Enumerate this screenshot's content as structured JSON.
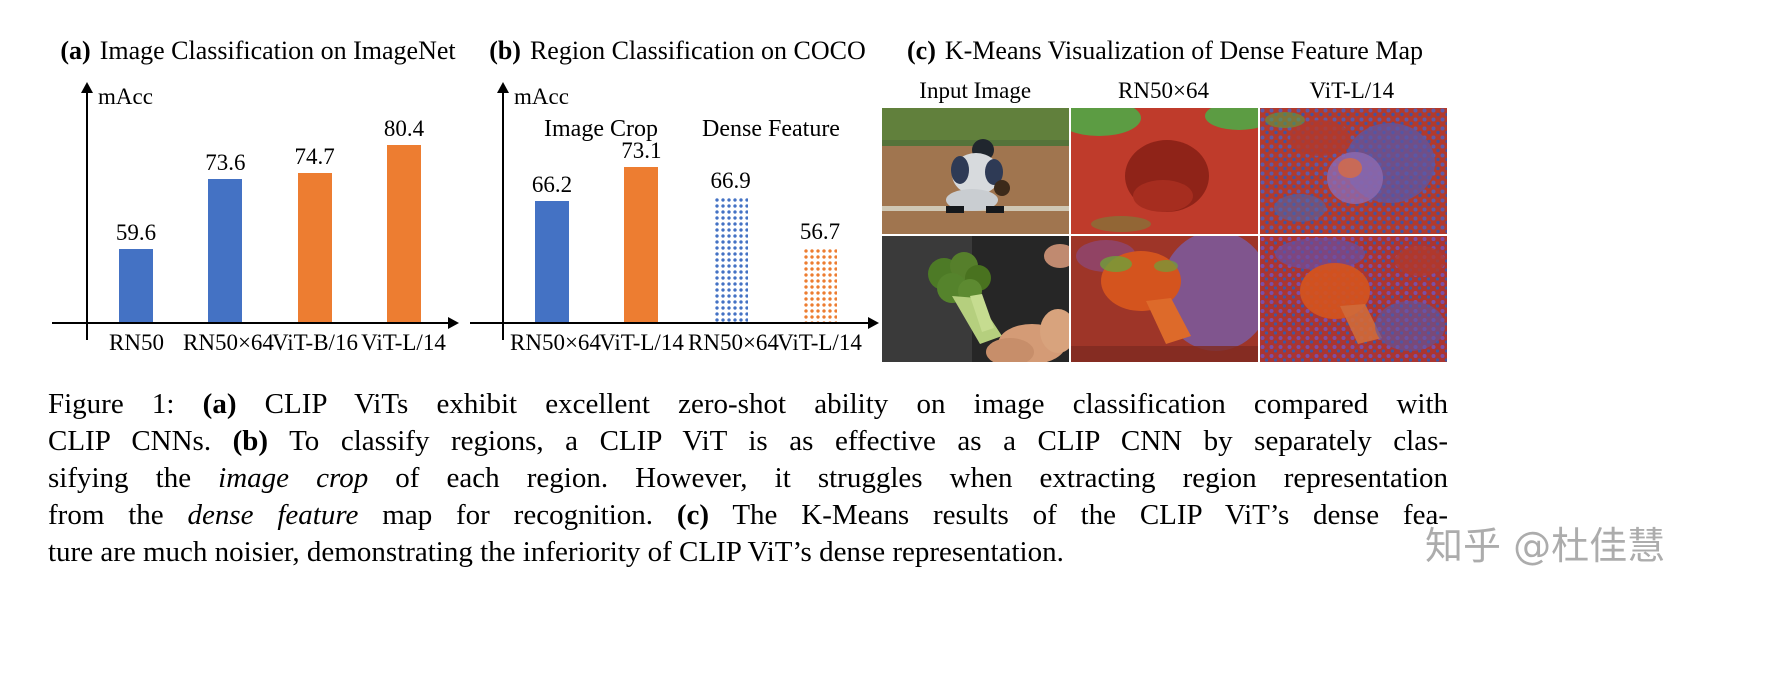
{
  "chart_data": [
    {
      "type": "bar",
      "label": "(a)",
      "title": "Image Classification on ImageNet",
      "ylabel": "mAcc",
      "categories": [
        "RN50",
        "RN50×64",
        "ViT-B/16",
        "ViT-L/14"
      ],
      "values": [
        59.6,
        73.6,
        74.7,
        80.4
      ],
      "colors": [
        "#4472C4",
        "#4472C4",
        "#ED7D31",
        "#ED7D31"
      ],
      "patterns": [
        "solid",
        "solid",
        "solid",
        "solid"
      ],
      "ylim": [
        45,
        85
      ],
      "grid": false,
      "legend": "none"
    },
    {
      "type": "bar",
      "label": "(b)",
      "title": "Region Classification on COCO",
      "ylabel": "mAcc",
      "group_labels": [
        "Image Crop",
        "Dense Feature"
      ],
      "categories": [
        "RN50×64",
        "ViT-L/14",
        "RN50×64",
        "ViT-L/14"
      ],
      "values": [
        66.2,
        73.1,
        66.9,
        56.7
      ],
      "colors": [
        "#4472C4",
        "#ED7D31",
        "#4472C4",
        "#ED7D31"
      ],
      "patterns": [
        "solid",
        "solid",
        "dotted",
        "dotted"
      ],
      "ylim": [
        42,
        80
      ],
      "grid": false,
      "legend": "none"
    }
  ],
  "panel_c": {
    "label": "(c)",
    "title": "K-Means Visualization of Dense Feature Map",
    "columns": [
      "Input Image",
      "RN50×64",
      "ViT-L/14"
    ],
    "rows": [
      "baseball-catcher",
      "broccoli"
    ]
  },
  "caption": {
    "lines": [
      [
        {
          "t": "Figure 1: "
        },
        {
          "t": "(a)",
          "b": true
        },
        {
          "t": " CLIP ViTs exhibit excellent zero-shot ability on image classification compared with"
        }
      ],
      [
        {
          "t": "CLIP CNNs. "
        },
        {
          "t": "(b)",
          "b": true
        },
        {
          "t": " To classify regions, a CLIP ViT is as effective as a CLIP CNN by separately clas-"
        }
      ],
      [
        {
          "t": "sifying the "
        },
        {
          "t": "image crop",
          "i": true
        },
        {
          "t": " of each region.  However, it struggles when extracting region representation"
        }
      ],
      [
        {
          "t": "from the "
        },
        {
          "t": "dense feature",
          "i": true
        },
        {
          "t": " map for recognition.  "
        },
        {
          "t": "(c)",
          "b": true
        },
        {
          "t": " The K-Means results of the CLIP ViT’s dense fea-"
        }
      ],
      [
        {
          "t": "ture are much noisier, demonstrating the inferiority of CLIP ViT’s dense representation."
        }
      ]
    ]
  },
  "watermark": "知乎 @杜佳慧"
}
